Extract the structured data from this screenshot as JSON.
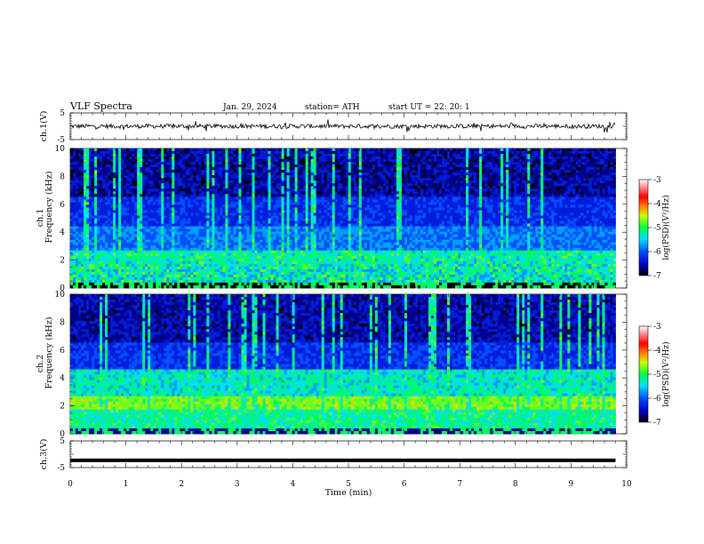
{
  "header": {
    "title": "VLF  Spectra",
    "date": "Jan. 29, 2024",
    "station": "station= ATH",
    "start_ut": "start  UT  =    22: 20: 1"
  },
  "chart_data": [
    {
      "type": "line",
      "id": "ch1-waveform",
      "ylabel": "ch.1(V)",
      "yticks": [
        "5",
        "-5"
      ],
      "ylim": [
        -5,
        5
      ],
      "xlim": [
        0,
        10
      ],
      "baseline": 0,
      "data_extent_min": 9.8,
      "color": "#000000"
    },
    {
      "type": "heatmap",
      "id": "ch1-spectrogram",
      "ylabel": "ch.1\nFrequency  (kHz)",
      "yticks": [
        "0",
        "2",
        "4",
        "6",
        "8",
        "10"
      ],
      "ylim": [
        0,
        10
      ],
      "xlim": [
        0,
        10
      ],
      "data_extent_min": 9.8,
      "colorbar": {
        "label": "log(PSD)(V²/Hz)",
        "ticks": [
          "-3",
          "-4",
          "-5",
          "-6",
          "-7"
        ],
        "range": [
          -7,
          -3
        ],
        "colors": [
          "#000000",
          "#0000ff",
          "#00ffff",
          "#00ff00",
          "#ffff00",
          "#ff0000",
          "#ffffff"
        ]
      }
    },
    {
      "type": "heatmap",
      "id": "ch2-spectrogram",
      "ylabel": "ch.2\nFrequency  (kHz)",
      "yticks": [
        "0",
        "2",
        "4",
        "6",
        "8",
        "10"
      ],
      "ylim": [
        0,
        10
      ],
      "xlim": [
        0,
        10
      ],
      "data_extent_min": 9.8,
      "colorbar": {
        "label": "log(PSD)(V²/Hz)",
        "ticks": [
          "-3",
          "-4",
          "-5",
          "-6",
          "-7"
        ],
        "range": [
          -7,
          -3
        ],
        "colors": [
          "#000000",
          "#0000ff",
          "#00ffff",
          "#00ff00",
          "#ffff00",
          "#ff0000",
          "#ffffff"
        ]
      }
    },
    {
      "type": "line",
      "id": "ch3-waveform",
      "ylabel": "ch.3(V)",
      "yticks": [
        "5",
        "-5"
      ],
      "ylim": [
        -5,
        5
      ],
      "xlim": [
        0,
        10
      ],
      "baseline": -2.3,
      "data_extent_min": 9.8,
      "color": "#000000"
    }
  ],
  "xaxis": {
    "label": "Time  (min)",
    "ticks": [
      "0",
      "1",
      "2",
      "3",
      "4",
      "5",
      "6",
      "7",
      "8",
      "9",
      "10"
    ]
  }
}
